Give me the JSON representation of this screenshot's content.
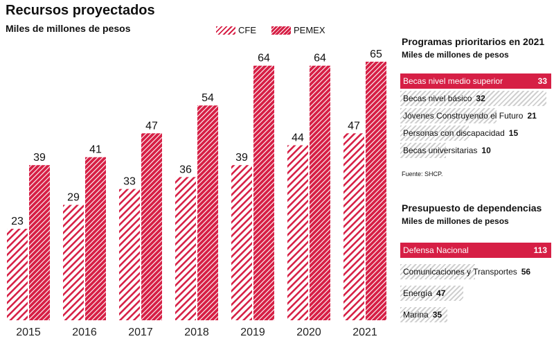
{
  "chart_data": [
    {
      "type": "bar",
      "title": "Recursos proyectados",
      "subtitle": "Miles de millones de pesos",
      "categories": [
        "2015",
        "2016",
        "2017",
        "2018",
        "2019",
        "2020",
        "2021"
      ],
      "series": [
        {
          "name": "CFE",
          "values": [
            23,
            29,
            33,
            36,
            39,
            44,
            47
          ],
          "style": "hatched"
        },
        {
          "name": "PEMEX",
          "values": [
            39,
            41,
            47,
            54,
            64,
            64,
            65
          ],
          "style": "solid-hatched"
        }
      ],
      "ylim": [
        0,
        65
      ]
    },
    {
      "type": "bar",
      "orientation": "horizontal",
      "title": "Programas prioritarios en 2021",
      "subtitle": "Miles de millones de pesos",
      "categories": [
        "Becas nivel medio superior",
        "Becas nivel básico",
        "Jóvenes Construyendo el Futuro",
        "Personas con discapacidad",
        "Becas universitarias"
      ],
      "values": [
        33,
        32,
        21,
        15,
        10
      ],
      "source": "Fuente: SHCP."
    },
    {
      "type": "bar",
      "orientation": "horizontal",
      "title": "Presupuesto de dependencias",
      "subtitle": "Miles de millones de pesos",
      "categories": [
        "Defensa Nacional",
        "Comunicaciones y Transportes",
        "Energía",
        "Marina"
      ],
      "values": [
        113,
        56,
        47,
        35
      ]
    }
  ],
  "colors": {
    "accent": "#d61f45",
    "light": "#eb7a8f",
    "gray": "#cfcfcf"
  }
}
